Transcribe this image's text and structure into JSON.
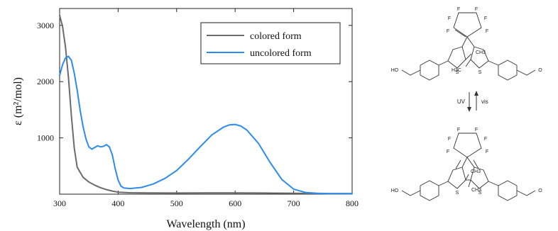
{
  "chart_data": {
    "type": "line",
    "xlabel": "Wavelength (nm)",
    "ylabel": "ε (m²/mol)",
    "xlim": [
      300,
      800
    ],
    "ylim": [
      0,
      3300
    ],
    "xticks": [
      300,
      400,
      500,
      600,
      700,
      800
    ],
    "yticks": [
      1000,
      2000,
      3000
    ],
    "grid": false,
    "legend_position": "top-right",
    "series": [
      {
        "name": "colored form",
        "color": "#6b6b6b",
        "x": [
          300,
          305,
          310,
          315,
          320,
          325,
          330,
          340,
          350,
          360,
          370,
          380,
          390,
          400,
          420,
          450,
          500,
          550,
          600,
          650,
          700,
          750,
          800
        ],
        "y": [
          3180,
          2980,
          2620,
          2080,
          1400,
          820,
          480,
          300,
          215,
          160,
          115,
          80,
          55,
          35,
          25,
          22,
          20,
          22,
          22,
          20,
          15,
          10,
          10
        ]
      },
      {
        "name": "uncolored form",
        "color": "#2a8cf0",
        "x": [
          300,
          305,
          310,
          315,
          320,
          325,
          330,
          335,
          340,
          345,
          350,
          355,
          360,
          365,
          370,
          375,
          380,
          385,
          390,
          395,
          400,
          405,
          410,
          420,
          440,
          460,
          480,
          500,
          520,
          540,
          560,
          580,
          590,
          600,
          610,
          620,
          640,
          660,
          680,
          700,
          720,
          740,
          760,
          780,
          800
        ],
        "y": [
          2110,
          2300,
          2420,
          2450,
          2380,
          2150,
          1850,
          1500,
          1200,
          980,
          840,
          800,
          830,
          860,
          840,
          850,
          880,
          840,
          700,
          450,
          250,
          140,
          110,
          100,
          120,
          180,
          280,
          420,
          620,
          840,
          1050,
          1190,
          1230,
          1240,
          1210,
          1140,
          900,
          560,
          260,
          90,
          30,
          15,
          10,
          10,
          10
        ]
      }
    ]
  },
  "scheme": {
    "top_molecule_labels": [
      "F",
      "F",
      "F",
      "F",
      "F",
      "F",
      "HO",
      "O",
      "S",
      "S",
      "CH3",
      "H3C"
    ],
    "bottom_molecule_labels": [
      "F",
      "F",
      "F",
      "F",
      "F",
      "F",
      "HO",
      "O",
      "S",
      "S",
      "CH3",
      "CH3"
    ],
    "arrow_left_label": "UV",
    "arrow_right_label": "vis"
  }
}
